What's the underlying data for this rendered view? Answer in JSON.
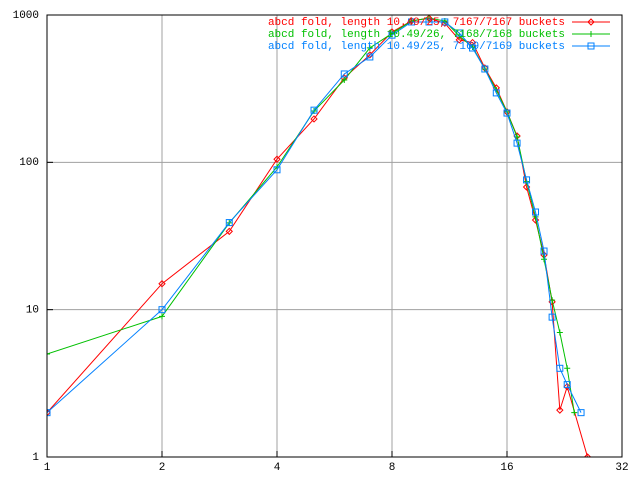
{
  "chart_data": {
    "type": "line",
    "xscale": "log",
    "xbase": 2,
    "yscale": "log",
    "ybase": 10,
    "xlim": [
      1,
      32
    ],
    "ylim": [
      1,
      1000
    ],
    "xticks": [
      1,
      2,
      4,
      8,
      16,
      32
    ],
    "yticks": [
      1,
      10,
      100,
      1000
    ],
    "grid": true,
    "legend": "top-right",
    "series": [
      {
        "name": "abcd fold, length 10.49/25, 7167/7167 buckets",
        "color": "#ff0000",
        "marker": "diamond",
        "x": [
          1,
          2,
          3,
          4,
          5,
          6,
          7,
          8,
          9,
          10,
          11,
          12,
          13,
          14,
          15,
          16,
          17,
          18,
          19,
          20,
          21,
          22,
          23,
          26
        ],
        "values": [
          2,
          15,
          34,
          105,
          197,
          374,
          536,
          767,
          912,
          950,
          880,
          678,
          650,
          437,
          320,
          220,
          151,
          68,
          40.6,
          23.5,
          11.3,
          2.08,
          3,
          1
        ]
      },
      {
        "name": "abcd fold, length 10.49/26, 7168/7168 buckets",
        "color": "#00c000",
        "marker": "plus",
        "x": [
          1,
          2,
          3,
          4,
          5,
          6,
          7,
          8,
          9,
          10,
          11,
          12,
          13,
          14,
          15,
          16,
          17,
          18,
          19,
          20,
          21,
          22,
          23,
          24
        ],
        "values": [
          5,
          9,
          38.8,
          93,
          223,
          362,
          598,
          750,
          910,
          955,
          910,
          720,
          607,
          430,
          310,
          220,
          149,
          74,
          42.6,
          22,
          11.6,
          7,
          4,
          2
        ]
      },
      {
        "name": "abcd fold, length 10.49/25, 7169/7169 buckets",
        "color": "#0080ff",
        "marker": "square",
        "x": [
          1,
          2,
          3,
          4,
          5,
          6,
          7,
          8,
          9,
          10,
          11,
          12,
          13,
          14,
          15,
          16,
          17,
          18,
          19,
          20,
          21,
          22,
          23,
          25
        ],
        "values": [
          2,
          10,
          39,
          89,
          226,
          398,
          519,
          730,
          897,
          897,
          897,
          755,
          597,
          430,
          296,
          216,
          135,
          76,
          46,
          25,
          8.9,
          4,
          3.1,
          2
        ]
      }
    ]
  }
}
